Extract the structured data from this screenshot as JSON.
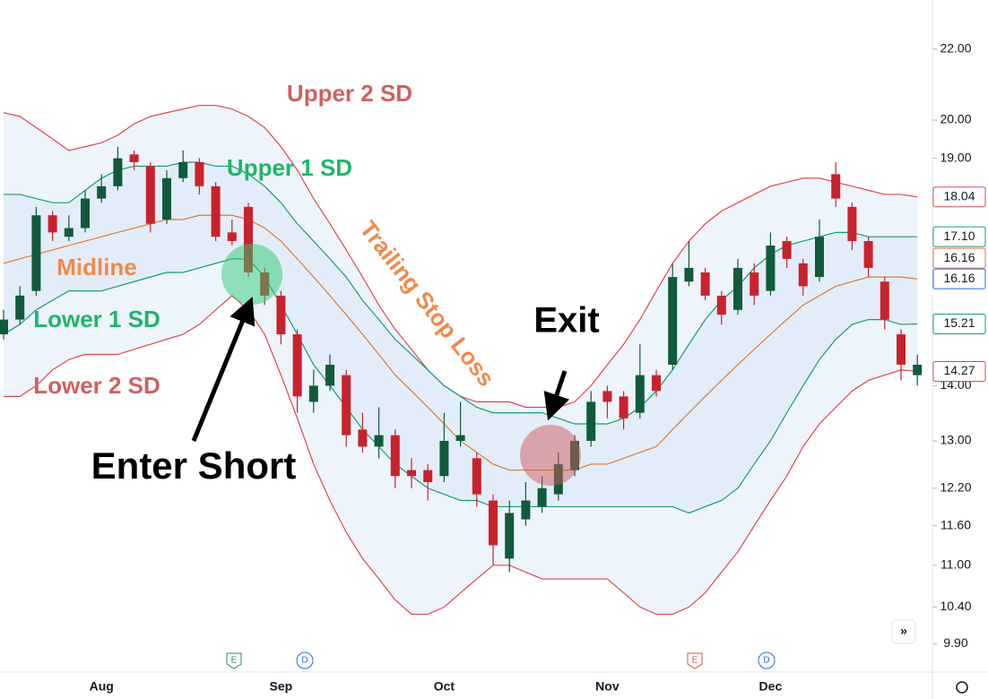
{
  "chart_data": {
    "type": "candlestick",
    "categories": [
      null,
      null,
      null,
      null,
      null,
      null,
      "Aug",
      null,
      null,
      null,
      null,
      null,
      null,
      null,
      null,
      null,
      null,
      "Sep",
      null,
      null,
      null,
      null,
      null,
      null,
      null,
      null,
      null,
      "Oct",
      null,
      null,
      null,
      null,
      null,
      null,
      null,
      null,
      null,
      "Nov",
      null,
      null,
      null,
      null,
      null,
      null,
      null,
      null,
      null,
      "Dec",
      null,
      null,
      null,
      null,
      null,
      null,
      null,
      null,
      null
    ],
    "candles": {
      "up_color": "#125a3c",
      "down_color": "#c8232c",
      "open": [
        15.0,
        15.3,
        15.9,
        17.6,
        17.1,
        17.3,
        18.0,
        18.3,
        19.1,
        18.8,
        17.5,
        18.5,
        18.9,
        18.3,
        17.2,
        17.8,
        16.3,
        15.8,
        15.0,
        13.7,
        14.0,
        14.2,
        13.2,
        12.9,
        13.1,
        12.5,
        12.5,
        12.4,
        13.0,
        12.7,
        12.0,
        11.1,
        11.7,
        11.9,
        12.1,
        12.5,
        13.0,
        13.9,
        13.8,
        13.5,
        14.2,
        14.4,
        16.1,
        16.3,
        15.8,
        15.5,
        16.3,
        15.9,
        17.0,
        16.5,
        16.2,
        18.6,
        17.8,
        17.0,
        16.1,
        15.0,
        14.2
      ],
      "high": [
        15.5,
        16.0,
        17.8,
        17.7,
        17.6,
        18.2,
        18.6,
        19.3,
        19.2,
        18.9,
        18.7,
        19.2,
        19.0,
        18.4,
        17.5,
        17.9,
        16.4,
        15.9,
        15.1,
        14.3,
        14.6,
        14.3,
        13.5,
        13.6,
        13.2,
        12.7,
        12.6,
        13.5,
        13.7,
        12.8,
        12.1,
        12.0,
        12.3,
        12.4,
        12.8,
        13.1,
        13.9,
        14.0,
        13.9,
        14.8,
        14.3,
        16.5,
        17.0,
        16.4,
        15.9,
        16.6,
        16.5,
        17.2,
        17.1,
        16.6,
        17.5,
        18.9,
        17.9,
        17.1,
        16.2,
        15.1,
        14.6
      ],
      "low": [
        14.9,
        15.2,
        15.8,
        17.0,
        17.0,
        17.2,
        17.9,
        18.2,
        18.7,
        17.2,
        17.4,
        18.4,
        18.1,
        17.0,
        16.9,
        16.2,
        15.6,
        14.8,
        13.5,
        13.5,
        13.9,
        12.9,
        12.8,
        12.7,
        12.2,
        12.2,
        12.0,
        12.3,
        12.9,
        11.9,
        11.0,
        10.9,
        11.6,
        11.8,
        12.0,
        12.4,
        12.9,
        13.4,
        13.2,
        13.4,
        13.8,
        14.3,
        16.0,
        15.7,
        15.2,
        15.4,
        15.6,
        15.8,
        16.4,
        15.8,
        16.1,
        17.8,
        16.8,
        16.2,
        15.1,
        14.1,
        14.0
      ],
      "close": [
        15.3,
        15.8,
        17.6,
        17.2,
        17.3,
        18.0,
        18.3,
        19.0,
        18.9,
        17.4,
        18.5,
        18.9,
        18.3,
        17.1,
        17.0,
        16.3,
        15.8,
        15.0,
        13.8,
        14.0,
        14.4,
        13.1,
        12.9,
        13.1,
        12.4,
        12.4,
        12.3,
        13.0,
        13.1,
        12.1,
        11.3,
        11.8,
        12.0,
        12.2,
        12.6,
        13.0,
        13.7,
        13.7,
        13.4,
        14.2,
        13.9,
        16.2,
        16.4,
        15.8,
        15.4,
        16.4,
        15.8,
        16.9,
        16.6,
        16.0,
        17.1,
        18.0,
        17.0,
        16.4,
        15.3,
        14.4,
        14.4
      ]
    },
    "series": [
      {
        "name": "Upper 2 SD",
        "color": "#e0474c",
        "end_label": "18.04",
        "values": [
          20.2,
          20.1,
          19.8,
          19.5,
          19.2,
          19.3,
          19.4,
          19.6,
          19.9,
          20.1,
          20.2,
          20.3,
          20.4,
          20.4,
          20.3,
          20.1,
          19.8,
          19.3,
          18.7,
          18.0,
          17.4,
          16.8,
          16.2,
          15.6,
          15.1,
          14.7,
          14.3,
          14.0,
          13.8,
          13.7,
          13.7,
          13.7,
          13.6,
          13.6,
          13.6,
          13.7,
          14.0,
          14.4,
          14.8,
          15.3,
          15.9,
          16.5,
          17.0,
          17.4,
          17.7,
          17.9,
          18.1,
          18.3,
          18.4,
          18.5,
          18.5,
          18.4,
          18.3,
          18.2,
          18.1,
          18.1,
          18.04
        ]
      },
      {
        "name": "Upper 1 SD",
        "color": "#169c76",
        "end_label": "17.10",
        "values": [
          18.1,
          18.1,
          18.0,
          17.9,
          17.9,
          18.2,
          18.5,
          18.7,
          18.8,
          18.8,
          18.8,
          18.9,
          18.9,
          18.8,
          18.8,
          18.6,
          18.3,
          17.9,
          17.4,
          17.0,
          16.6,
          16.2,
          15.7,
          15.3,
          14.9,
          14.6,
          14.3,
          14.0,
          13.8,
          13.6,
          13.5,
          13.5,
          13.5,
          13.5,
          13.4,
          13.3,
          13.3,
          13.3,
          13.4,
          13.6,
          13.9,
          14.3,
          14.8,
          15.3,
          15.7,
          16.0,
          16.4,
          16.7,
          16.9,
          17.0,
          17.1,
          17.2,
          17.2,
          17.1,
          17.1,
          17.1,
          17.1
        ]
      },
      {
        "name": "Midline",
        "color": "#e07b39",
        "end_label": "16.16",
        "values": [
          16.5,
          16.6,
          16.7,
          16.8,
          16.9,
          17.0,
          17.1,
          17.2,
          17.3,
          17.4,
          17.5,
          17.5,
          17.6,
          17.6,
          17.6,
          17.5,
          17.3,
          17.0,
          16.6,
          16.2,
          15.8,
          15.4,
          15.0,
          14.6,
          14.2,
          13.9,
          13.6,
          13.3,
          13.0,
          12.8,
          12.6,
          12.5,
          12.5,
          12.5,
          12.5,
          12.5,
          12.6,
          12.6,
          12.7,
          12.8,
          12.9,
          13.2,
          13.5,
          13.8,
          14.1,
          14.4,
          14.7,
          15.0,
          15.3,
          15.6,
          15.8,
          16.0,
          16.1,
          16.2,
          16.2,
          16.2,
          16.16
        ]
      },
      {
        "name": "Lower 1 SD",
        "color": "#169c76",
        "end_label": "15.21",
        "values": [
          15.0,
          15.2,
          15.5,
          15.7,
          15.9,
          15.9,
          15.9,
          16.0,
          16.1,
          16.2,
          16.3,
          16.3,
          16.4,
          16.5,
          16.6,
          16.6,
          16.2,
          15.6,
          15.0,
          14.4,
          14.0,
          13.6,
          13.2,
          12.9,
          12.6,
          12.4,
          12.2,
          12.1,
          12.0,
          12.0,
          11.9,
          11.9,
          11.9,
          11.9,
          11.9,
          11.9,
          11.9,
          11.9,
          11.9,
          11.9,
          11.9,
          11.9,
          11.8,
          11.9,
          12.0,
          12.2,
          12.6,
          13.0,
          13.5,
          14.0,
          14.5,
          14.9,
          15.2,
          15.3,
          15.3,
          15.2,
          15.21
        ]
      },
      {
        "name": "Lower 2 SD",
        "color": "#e0474c",
        "end_label": "14.27",
        "values": [
          13.8,
          13.8,
          14.0,
          14.3,
          14.5,
          14.6,
          14.6,
          14.6,
          14.7,
          14.8,
          14.9,
          15.0,
          15.2,
          15.5,
          15.8,
          15.5,
          15.0,
          14.2,
          13.4,
          12.6,
          12.0,
          11.5,
          11.1,
          10.8,
          10.5,
          10.3,
          10.3,
          10.4,
          10.6,
          10.8,
          11.0,
          11.0,
          10.9,
          10.8,
          10.8,
          10.8,
          10.8,
          10.8,
          10.6,
          10.4,
          10.3,
          10.3,
          10.4,
          10.6,
          10.9,
          11.2,
          11.6,
          12.0,
          12.4,
          12.9,
          13.3,
          13.6,
          13.9,
          14.1,
          14.2,
          14.3,
          14.27
        ]
      }
    ],
    "marker_labels": [
      {
        "value": 16.16,
        "label": "16.16",
        "color": "#2962ff"
      }
    ],
    "log_scale": true,
    "ylim": [
      9.53,
      23.5
    ],
    "yticks": [
      {
        "value": 22,
        "label": "22.00"
      },
      {
        "value": 20,
        "label": "20.00"
      },
      {
        "value": 19,
        "label": "19.00"
      },
      {
        "value": 14,
        "label": "14.00"
      },
      {
        "value": 13,
        "label": "13.00"
      },
      {
        "value": 12.2,
        "label": "12.20"
      },
      {
        "value": 11.6,
        "label": "11.60"
      },
      {
        "value": 11,
        "label": "11.00"
      },
      {
        "value": 10.4,
        "label": "10.40"
      },
      {
        "value": 9.9,
        "label": "9.90"
      }
    ],
    "annotations": {
      "trailing_stop": "Trailing Stop Loss",
      "exit": "Exit",
      "entry": "Enter Short"
    },
    "events": [
      "E",
      "D",
      "E",
      "D"
    ]
  }
}
